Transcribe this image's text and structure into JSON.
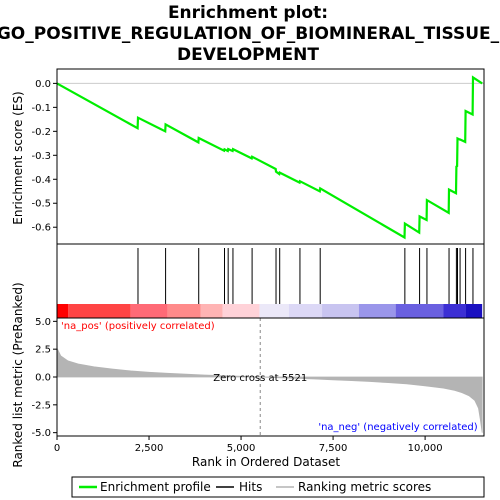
{
  "chart_data": {
    "type": "line",
    "title_lines": [
      "Enrichment plot:",
      "GO_POSITIVE_REGULATION_OF_BIOMINERAL_TISSUE_",
      "DEVELOPMENT"
    ],
    "xlabel": "Rank in Ordered Dataset",
    "ylabel_top": "Enrichment score (ES)",
    "ylabel_bottom": "Ranked list metric (PreRanked)",
    "x_ticks": [
      0,
      2500,
      5000,
      7500,
      10000
    ],
    "x_tick_labels": [
      "0",
      "2,500",
      "5,000",
      "7,500",
      "10,000"
    ],
    "es_y_ticks": [
      0.0,
      -0.1,
      -0.2,
      -0.3,
      -0.4,
      -0.5,
      -0.6
    ],
    "es_y_tick_labels": [
      "0.0",
      "-0.1",
      "-0.2",
      "-0.3",
      "-0.4",
      "-0.5",
      "-0.6"
    ],
    "metric_y_ticks": [
      5.0,
      2.5,
      0.0,
      -2.5,
      -5.0
    ],
    "metric_y_tick_labels": [
      "5.0",
      "2.5",
      "0.0",
      "-2.5",
      "-5.0"
    ],
    "xlim": [
      0,
      11600
    ],
    "es_ylim": [
      -0.67,
      0.06
    ],
    "metric_ylim": [
      -5.3,
      5.3
    ],
    "n_genes": 11550,
    "hits": [
      2200,
      2950,
      3850,
      4550,
      4650,
      4780,
      5300,
      5950,
      6050,
      6600,
      7150,
      9450,
      9850,
      10050,
      10650,
      10850,
      10880,
      10950,
      11100,
      11300
    ],
    "es_curve": {
      "x": [
        0,
        2190,
        2200,
        2940,
        2950,
        3840,
        3850,
        4540,
        4550,
        4640,
        4650,
        4770,
        4780,
        5290,
        5300,
        5940,
        5950,
        6040,
        6050,
        6590,
        6600,
        7140,
        7150,
        9440,
        9450,
        9840,
        9850,
        10040,
        10050,
        10640,
        10650,
        10840,
        10850,
        10870,
        10880,
        10940,
        10950,
        11090,
        11100,
        11290,
        11300,
        11550
      ],
      "y": [
        0.0,
        -0.187,
        -0.143,
        -0.2,
        -0.171,
        -0.246,
        -0.228,
        -0.281,
        -0.275,
        -0.282,
        -0.274,
        -0.282,
        -0.274,
        -0.313,
        -0.306,
        -0.357,
        -0.368,
        -0.378,
        -0.372,
        -0.414,
        -0.408,
        -0.45,
        -0.438,
        -0.643,
        -0.585,
        -0.622,
        -0.555,
        -0.57,
        -0.487,
        -0.54,
        -0.443,
        -0.458,
        -0.347,
        -0.345,
        -0.23,
        -0.234,
        -0.234,
        -0.244,
        -0.115,
        -0.13,
        0.025,
        0.0
      ]
    },
    "metric_curve": {
      "x": [
        0,
        100,
        300,
        600,
        1000,
        1500,
        2000,
        2500,
        3000,
        3500,
        4000,
        4500,
        5000,
        5521,
        6000,
        6500,
        7000,
        7500,
        8000,
        8500,
        9000,
        9500,
        10000,
        10500,
        10800,
        11000,
        11200,
        11350,
        11450,
        11500,
        11550
      ],
      "y": [
        2.6,
        1.9,
        1.45,
        1.15,
        0.92,
        0.72,
        0.55,
        0.42,
        0.33,
        0.25,
        0.18,
        0.12,
        0.06,
        0.0,
        -0.06,
        -0.12,
        -0.18,
        -0.25,
        -0.32,
        -0.4,
        -0.5,
        -0.62,
        -0.8,
        -1.0,
        -1.2,
        -1.4,
        -1.7,
        -2.1,
        -2.8,
        -3.8,
        -5.0
      ]
    },
    "heatmap_bands": [
      {
        "from": 0,
        "to": 300,
        "color": "#ff0000"
      },
      {
        "from": 300,
        "to": 2000,
        "color": "#ff4444"
      },
      {
        "from": 2000,
        "to": 3000,
        "color": "#ff6a76"
      },
      {
        "from": 3000,
        "to": 3900,
        "color": "#ff8a8a"
      },
      {
        "from": 3900,
        "to": 4500,
        "color": "#ffb4b4"
      },
      {
        "from": 4500,
        "to": 5500,
        "color": "#ffd2d8"
      },
      {
        "from": 5500,
        "to": 6300,
        "color": "#ebe8f8"
      },
      {
        "from": 6300,
        "to": 7200,
        "color": "#dcd8f6"
      },
      {
        "from": 7200,
        "to": 8200,
        "color": "#c8c4f0"
      },
      {
        "from": 8200,
        "to": 9200,
        "color": "#9a96ea"
      },
      {
        "from": 9200,
        "to": 10500,
        "color": "#6a60e0"
      },
      {
        "from": 10500,
        "to": 11100,
        "color": "#3c2fd4"
      },
      {
        "from": 11100,
        "to": 11550,
        "color": "#1a10c0"
      }
    ],
    "zero_cross": 5521,
    "zero_cross_label": "Zero cross at 5521",
    "pos_label": "'na_pos' (positively correlated)",
    "neg_label": "'na_neg' (negatively correlated)",
    "legend": [
      "Enrichment profile",
      "Hits",
      "Ranking metric scores"
    ],
    "colors": {
      "es_line": "#00ee00",
      "hit": "#000000",
      "metric_fill": "#b4b4b4",
      "pos_text": "#ff0000",
      "neg_text": "#0000ff",
      "zero_line": "#888888"
    }
  }
}
